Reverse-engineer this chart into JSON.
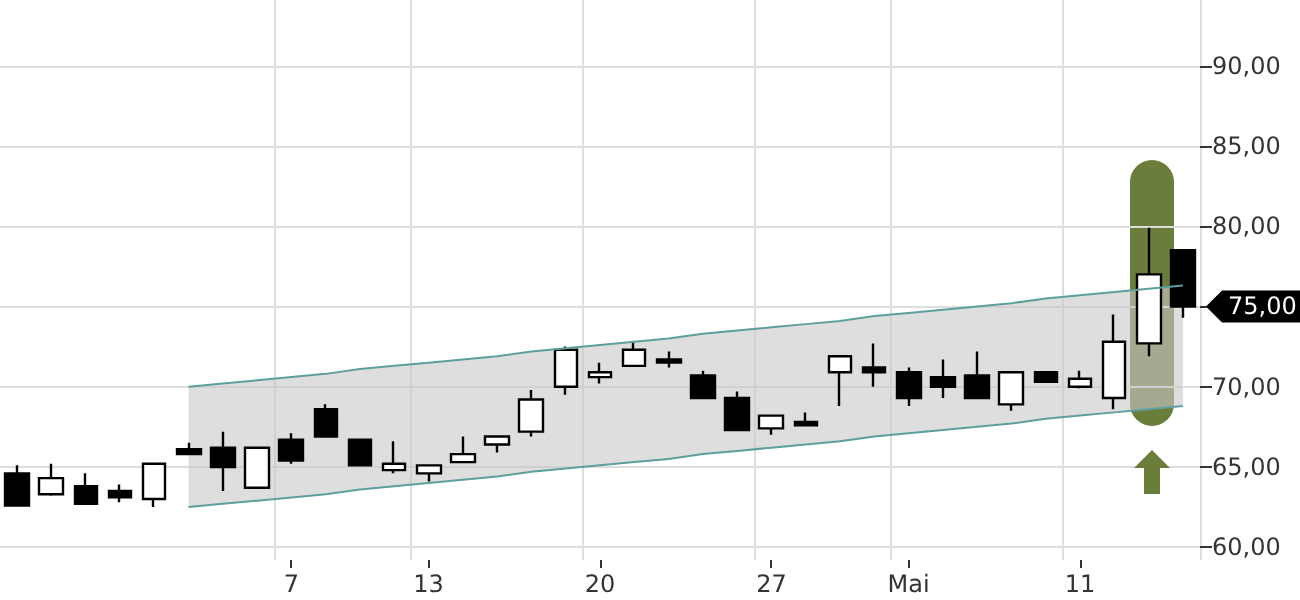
{
  "chart_data": {
    "type": "candlestick",
    "categories": [
      null,
      null,
      null,
      null,
      null,
      null,
      null,
      null,
      "7",
      null,
      null,
      null,
      "13",
      null,
      null,
      null,
      null,
      "20",
      null,
      null,
      null,
      null,
      "27",
      null,
      null,
      null,
      "Mai",
      null,
      null,
      null,
      null,
      "11",
      null,
      null,
      null
    ],
    "ohlc": [
      [
        64.6,
        65.1,
        62.6,
        62.6
      ],
      [
        63.3,
        65.2,
        63.2,
        64.3
      ],
      [
        63.8,
        64.6,
        62.7,
        62.7
      ],
      [
        63.5,
        63.9,
        62.8,
        63.1
      ],
      [
        63.0,
        65.2,
        62.5,
        65.2
      ],
      [
        66.1,
        66.5,
        65.8,
        65.8
      ],
      [
        66.2,
        67.2,
        63.5,
        65.0
      ],
      [
        63.7,
        66.2,
        63.7,
        66.2
      ],
      [
        66.7,
        67.1,
        65.2,
        65.4
      ],
      [
        68.6,
        68.9,
        66.9,
        66.9
      ],
      [
        66.7,
        66.7,
        65.1,
        65.1
      ],
      [
        64.8,
        66.6,
        64.6,
        65.2
      ],
      [
        64.6,
        65.1,
        64.1,
        65.1
      ],
      [
        65.3,
        66.9,
        65.3,
        65.8
      ],
      [
        66.4,
        66.9,
        65.9,
        66.9
      ],
      [
        67.2,
        69.8,
        66.9,
        69.2
      ],
      [
        70.0,
        72.5,
        69.5,
        72.3
      ],
      [
        70.6,
        71.5,
        70.2,
        70.9
      ],
      [
        71.3,
        72.8,
        71.3,
        72.3
      ],
      [
        71.7,
        72.2,
        71.2,
        71.5
      ],
      [
        70.7,
        71.0,
        69.3,
        69.3
      ],
      [
        69.3,
        69.7,
        67.3,
        67.3
      ],
      [
        67.4,
        68.2,
        67.0,
        68.2
      ],
      [
        67.8,
        68.4,
        67.6,
        67.6
      ],
      [
        70.9,
        71.9,
        68.8,
        71.9
      ],
      [
        71.2,
        72.7,
        70.0,
        70.9
      ],
      [
        70.9,
        71.2,
        68.8,
        69.3
      ],
      [
        70.6,
        71.7,
        69.3,
        70.0
      ],
      [
        70.7,
        72.2,
        69.3,
        69.3
      ],
      [
        68.9,
        70.9,
        68.5,
        70.9
      ],
      [
        70.9,
        70.9,
        70.3,
        70.3
      ],
      [
        70.0,
        71.0,
        69.9,
        70.5
      ],
      [
        69.3,
        74.5,
        68.6,
        72.8
      ],
      [
        72.7,
        79.9,
        71.9,
        77.0
      ],
      [
        78.5,
        78.5,
        74.3,
        75.0
      ]
    ],
    "series": [
      {
        "type": "line",
        "color": "#5f9ea0",
        "values": [
          null,
          null,
          null,
          null,
          null,
          70.0,
          70.2,
          70.4,
          70.6,
          70.8,
          71.1,
          71.3,
          71.5,
          71.7,
          71.9,
          72.2,
          72.4,
          72.6,
          72.8,
          73.0,
          73.3,
          73.5,
          73.7,
          73.9,
          74.1,
          74.4,
          74.6,
          74.8,
          75.0,
          75.2,
          75.5,
          75.7,
          75.9,
          76.1,
          76.3
        ],
        "upper": [
          null,
          null,
          null,
          null,
          null,
          70.0,
          70.2,
          70.4,
          70.6,
          70.8,
          71.1,
          71.3,
          71.5,
          71.7,
          71.9,
          72.2,
          72.4,
          72.6,
          72.8,
          73.0,
          73.3,
          73.5,
          73.7,
          73.9,
          74.1,
          74.4,
          74.6,
          74.8,
          75.0,
          75.2,
          75.5,
          75.7,
          75.9,
          76.1,
          76.3
        ],
        "lower": [
          null,
          null,
          null,
          null,
          null,
          62.5,
          62.7,
          62.9,
          63.1,
          63.3,
          63.6,
          63.8,
          64.0,
          64.2,
          64.4,
          64.7,
          64.9,
          65.1,
          65.3,
          65.5,
          65.8,
          66.0,
          66.2,
          66.4,
          66.6,
          66.9,
          67.1,
          67.3,
          67.5,
          67.7,
          68.0,
          68.2,
          68.4,
          68.6,
          68.8
        ]
      },
      {
        "type": "line",
        "color": "#5f9ea0",
        "values": [
          null,
          null,
          null,
          null,
          null,
          62.5,
          62.7,
          62.9,
          63.1,
          63.3,
          63.6,
          63.8,
          64.0,
          64.2,
          64.4,
          64.7,
          64.9,
          65.1,
          65.3,
          65.5,
          65.8,
          66.0,
          66.2,
          66.4,
          66.6,
          66.9,
          67.1,
          67.3,
          67.5,
          67.7,
          68.0,
          68.2,
          68.4,
          68.6,
          68.8
        ]
      }
    ],
    "ylim": [
      59.2,
      94.1
    ],
    "yticks": [
      {
        "value": 60,
        "label": "60,00"
      },
      {
        "value": 65,
        "label": "65,00"
      },
      {
        "value": 70,
        "label": "70,00"
      },
      {
        "value": 75,
        "label": null
      },
      {
        "value": 80,
        "label": "80,00"
      },
      {
        "value": 85,
        "label": "85,00"
      },
      {
        "value": 90,
        "label": "90,00"
      }
    ],
    "annotations": [
      "75,00"
    ],
    "grid": true
  }
}
